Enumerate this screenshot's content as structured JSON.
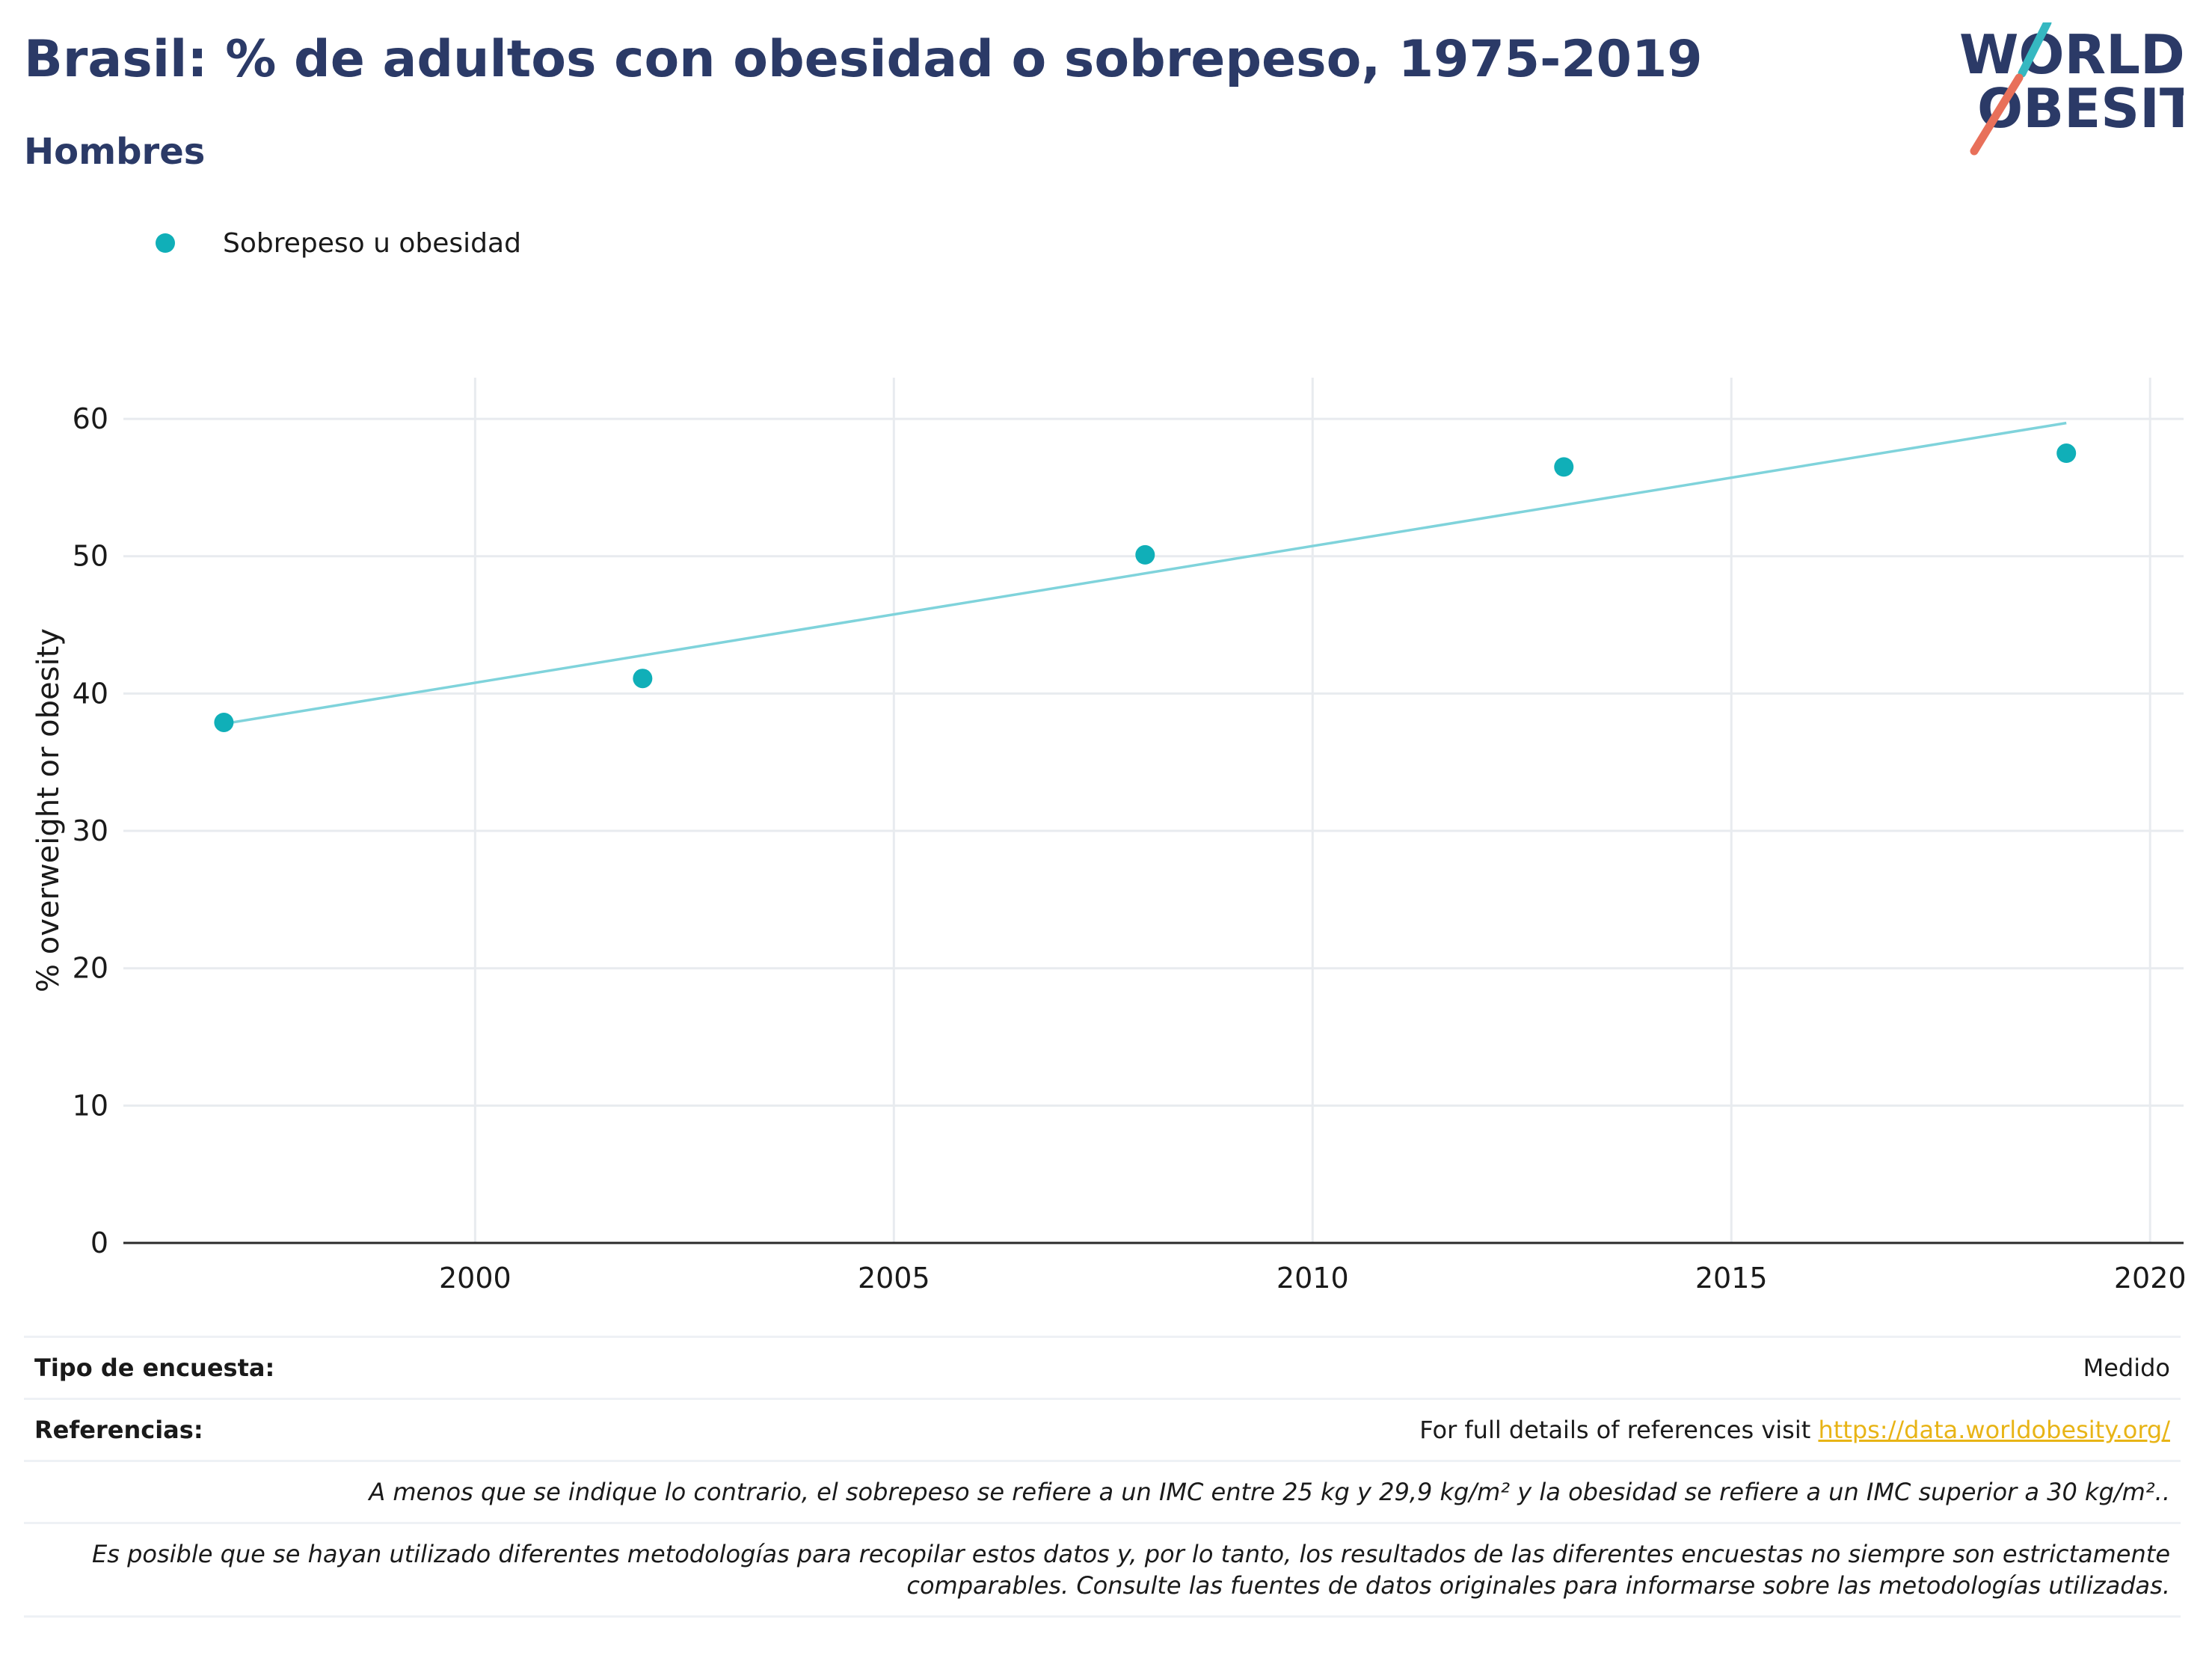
{
  "header": {
    "title": "Brasil: % de adultos con obesidad o sobrepeso, 1975-2019",
    "subtitle": "Hombres"
  },
  "logo": {
    "line1": "WORLD",
    "line2": "OBESITY",
    "text_color": "#2b3a67",
    "accent_teal": "#36b8c1",
    "accent_coral": "#e8705a"
  },
  "colors": {
    "series": "#10afb8",
    "trend": "#7fd3db",
    "link": "#e8b416",
    "title": "#2b3a67"
  },
  "chart_data": {
    "type": "scatter",
    "title": "Brasil: % de adultos con obesidad o sobrepeso, 1975-2019",
    "subtitle": "Hombres",
    "xlabel": "",
    "ylabel": "% overweight or obesity",
    "xlim": [
      1995.8,
      2020.4
    ],
    "ylim": [
      0,
      63
    ],
    "xticks": [
      2000,
      2005,
      2010,
      2015,
      2020
    ],
    "yticks": [
      0,
      10,
      20,
      30,
      40,
      50,
      60
    ],
    "grid": true,
    "legend_position": "top-left",
    "series": [
      {
        "name": "Sobrepeso u obesidad",
        "x": [
          1997,
          2002,
          2008,
          2013,
          2019
        ],
        "y": [
          37.9,
          41.1,
          50.1,
          56.5,
          57.5
        ]
      }
    ],
    "trendline": {
      "x": [
        1997,
        2019
      ],
      "y": [
        37.8,
        59.7
      ]
    }
  },
  "info": {
    "survey_label": "Tipo de encuesta:",
    "survey_value": "Medido",
    "refs_label": "Referencias:",
    "refs_text": "For full details of references visit ",
    "refs_link": "https://data.worldobesity.org/",
    "note1": "A menos que se indique lo contrario, el sobrepeso se refiere a un IMC entre 25 kg y 29,9 kg/m² y la obesidad se refiere a un IMC superior a 30 kg/m²..",
    "note2_line1": "Es posible que se hayan utilizado diferentes metodologías para recopilar estos datos y, por lo tanto, los resultados de las diferentes encuestas no siempre son estrictamente",
    "note2_line2": "comparables. Consulte las fuentes de datos originales para informarse sobre las metodologías utilizadas."
  }
}
